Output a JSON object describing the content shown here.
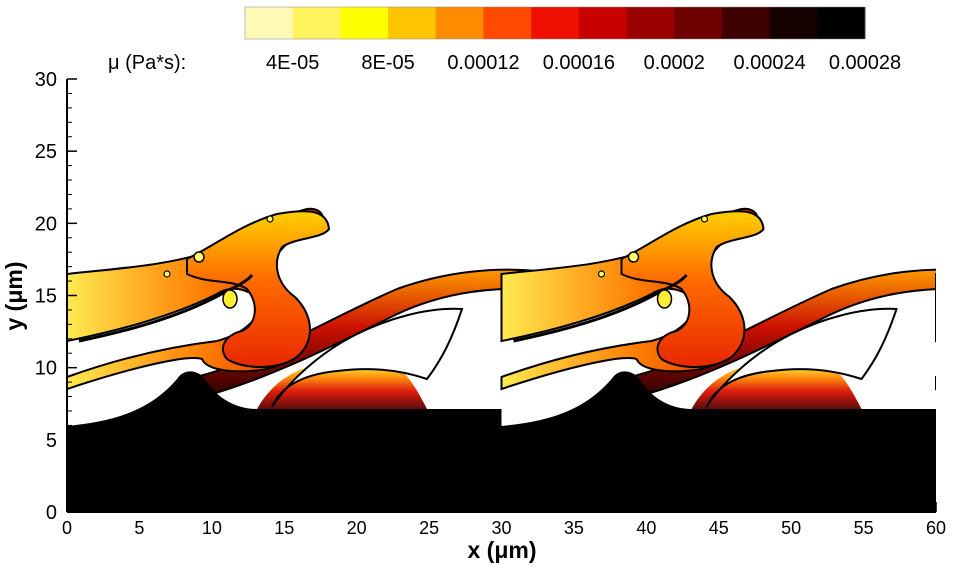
{
  "chart_data": {
    "type": "heatmap",
    "title": "",
    "xlabel": "x (μm)",
    "ylabel": "y (μm)",
    "xlim": [
      0,
      60
    ],
    "ylim": [
      0,
      30
    ],
    "x_ticks": [
      "0",
      "5",
      "10",
      "15",
      "20",
      "25",
      "30",
      "35",
      "40",
      "45",
      "50",
      "55",
      "60"
    ],
    "y_ticks": [
      "0",
      "5",
      "10",
      "15",
      "20",
      "25",
      "30"
    ],
    "x_tick_values": [
      0,
      5,
      10,
      15,
      20,
      25,
      30,
      35,
      40,
      45,
      50,
      55,
      60
    ],
    "y_tick_values": [
      0,
      5,
      10,
      15,
      20,
      25,
      30
    ],
    "grid": false,
    "colorbar": {
      "title": "μ (Pa*s):",
      "placement": "top",
      "colors": [
        "#fff9b8",
        "#fff35e",
        "#ffff00",
        "#ffc400",
        "#ff8c00",
        "#ff4a00",
        "#ee1000",
        "#c80000",
        "#9a0000",
        "#6e0000",
        "#3e0000",
        "#160000",
        "#000000"
      ],
      "tick_labels": [
        "4E-05",
        "8E-05",
        "0.00012",
        "0.00016",
        "0.0002",
        "0.00024",
        "0.00028"
      ],
      "tick_values": [
        4e-05,
        8e-05,
        0.00012,
        0.00016,
        0.0002,
        0.00024,
        0.00028
      ]
    },
    "dense_phase_color": "#000000",
    "light_phase_color": "#ffffff",
    "interface_line_color": "#000000"
  }
}
